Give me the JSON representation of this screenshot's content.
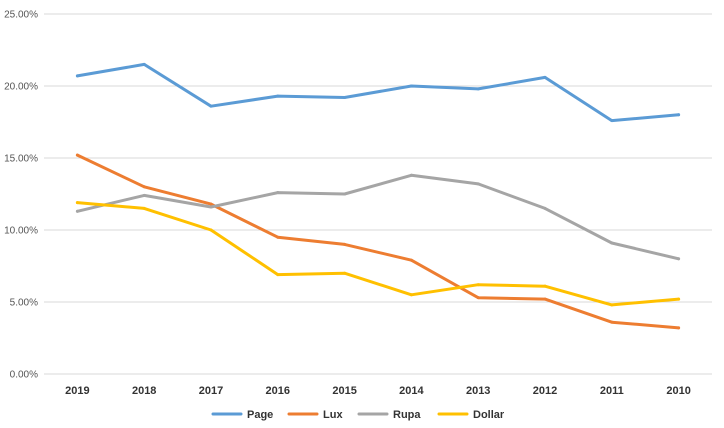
{
  "chart_data": {
    "type": "line",
    "title": "",
    "xlabel": "",
    "ylabel": "",
    "categories": [
      "2019",
      "2018",
      "2017",
      "2016",
      "2015",
      "2014",
      "2013",
      "2012",
      "2011",
      "2010"
    ],
    "y_ticks": [
      "0.00%",
      "5.00%",
      "10.00%",
      "15.00%",
      "20.00%",
      "25.00%"
    ],
    "ylim": [
      0,
      25
    ],
    "y_unit": "percent",
    "grid": true,
    "legend_position": "bottom",
    "series": [
      {
        "name": "Page",
        "color": "#5b9bd5",
        "values": [
          20.7,
          21.5,
          18.6,
          19.3,
          19.2,
          20.0,
          19.8,
          20.6,
          17.6,
          18.0
        ]
      },
      {
        "name": "Lux",
        "color": "#ed7d31",
        "values": [
          15.2,
          13.0,
          11.8,
          9.5,
          9.0,
          7.9,
          5.3,
          5.2,
          3.6,
          3.2
        ]
      },
      {
        "name": "Rupa",
        "color": "#a5a5a5",
        "values": [
          11.3,
          12.4,
          11.6,
          12.6,
          12.5,
          13.8,
          13.2,
          11.5,
          9.1,
          8.0
        ]
      },
      {
        "name": "Dollar",
        "color": "#ffc000",
        "values": [
          11.9,
          11.5,
          10.0,
          6.9,
          7.0,
          5.5,
          6.2,
          6.1,
          4.8,
          5.2
        ]
      }
    ]
  }
}
